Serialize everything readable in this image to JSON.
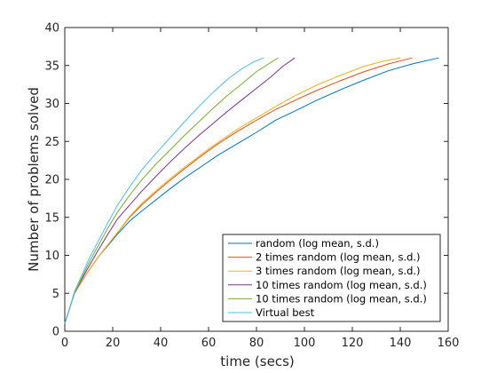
{
  "chart_data": {
    "type": "line",
    "title": "",
    "xlabel": "time (secs)",
    "ylabel": "Number of problems solved",
    "xlim": [
      0,
      160
    ],
    "ylim": [
      0,
      40
    ],
    "xticks": [
      0,
      20,
      40,
      60,
      80,
      100,
      120,
      140,
      160
    ],
    "yticks": [
      0,
      5,
      10,
      15,
      20,
      25,
      30,
      35,
      40
    ],
    "grid": false,
    "legend_position": "bottom-right",
    "series": [
      {
        "name": "random (log mean, s.d.)",
        "color": "#0072BD",
        "x": [
          0,
          2,
          4,
          7,
          10,
          14,
          18,
          22,
          27,
          32,
          38,
          44,
          50,
          57,
          64,
          72,
          80,
          88,
          96,
          105,
          115,
          125,
          135,
          145,
          156
        ],
        "y": [
          1,
          3,
          5,
          6.5,
          8,
          9.8,
          11.3,
          12.8,
          14.5,
          15.8,
          17.3,
          18.8,
          20.2,
          21.7,
          23.2,
          24.7,
          26.2,
          27.8,
          29,
          30.4,
          31.8,
          33.1,
          34.3,
          35.2,
          36
        ]
      },
      {
        "name": "2 times random (log mean, s.d.)",
        "color": "#D95319",
        "x": [
          0,
          2,
          4,
          7,
          10,
          14,
          18,
          22,
          27,
          32,
          38,
          44,
          50,
          57,
          64,
          72,
          80,
          88,
          96,
          105,
          115,
          125,
          135,
          145
        ],
        "y": [
          1,
          3,
          5,
          6.5,
          8,
          9.8,
          11.4,
          13,
          15,
          16.6,
          18.3,
          19.9,
          21.4,
          23.1,
          24.7,
          26.3,
          27.8,
          29.2,
          30.4,
          31.7,
          33,
          34.2,
          35.2,
          36
        ]
      },
      {
        "name": "3 times random (log mean, s.d.)",
        "color": "#EDB120",
        "x": [
          0,
          2,
          4,
          7,
          10,
          14,
          18,
          22,
          27,
          32,
          38,
          44,
          50,
          57,
          64,
          72,
          80,
          88,
          96,
          105,
          115,
          125,
          132,
          140
        ],
        "y": [
          1,
          3,
          5,
          6.5,
          8,
          9.8,
          11.4,
          13,
          15.1,
          16.8,
          18.5,
          20.1,
          21.6,
          23.3,
          24.9,
          26.6,
          28.1,
          29.6,
          31,
          32.4,
          33.7,
          34.9,
          35.5,
          36
        ]
      },
      {
        "name": "10 times random (log mean, s.d.)",
        "color": "#7E2F8E",
        "x": [
          0,
          2,
          4,
          7,
          10,
          14,
          18,
          22,
          27,
          32,
          38,
          44,
          50,
          56,
          62,
          68,
          74,
          80,
          86,
          91,
          96
        ],
        "y": [
          1,
          3,
          5,
          6.8,
          8.5,
          10.7,
          12.8,
          14.8,
          16.6,
          18.4,
          20.4,
          22.3,
          24.1,
          25.8,
          27.4,
          29,
          30.5,
          32,
          33.5,
          34.9,
          36
        ]
      },
      {
        "name": "10 times random (log mean, s.d.)",
        "color": "#77AC30",
        "x": [
          0,
          2,
          4,
          7,
          10,
          14,
          18,
          22,
          27,
          32,
          38,
          44,
          50,
          56,
          62,
          68,
          74,
          80,
          86,
          89
        ],
        "y": [
          1,
          3,
          5,
          7,
          9,
          11.3,
          13.6,
          15.7,
          17.9,
          19.9,
          22,
          23.9,
          25.8,
          27.6,
          29.4,
          31.1,
          32.6,
          34.2,
          35.4,
          36
        ]
      },
      {
        "name": "Virtual best",
        "color": "#4DBEEE",
        "x": [
          0,
          2,
          4,
          7,
          10,
          14,
          18,
          22,
          27,
          32,
          38,
          44,
          50,
          56,
          62,
          68,
          74,
          79,
          83
        ],
        "y": [
          1,
          3,
          5.2,
          7.3,
          9.5,
          11.9,
          14.3,
          16.6,
          19,
          21.2,
          23.4,
          25.5,
          27.6,
          29.6,
          31.5,
          33.2,
          34.6,
          35.5,
          36
        ]
      }
    ]
  }
}
